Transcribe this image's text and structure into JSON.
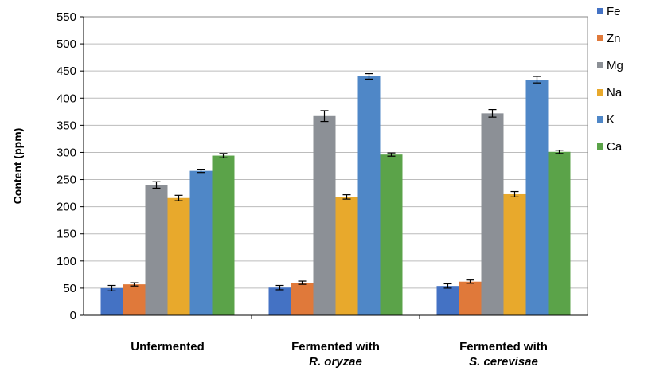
{
  "chart_data": {
    "type": "bar",
    "categories": [
      {
        "line1": "Unfermented",
        "line2": ""
      },
      {
        "line1": "Fermented with",
        "line2": "R. oryzae"
      },
      {
        "line1": "Fermented with",
        "line2": "S. cerevisae"
      }
    ],
    "ylabel": "Content (ppm)",
    "xlabel": "",
    "title": "",
    "ylim": [
      0,
      550
    ],
    "yticks": [
      0,
      50,
      100,
      150,
      200,
      250,
      300,
      350,
      400,
      450,
      500,
      550
    ],
    "grid": true,
    "legend_position": "right",
    "series": [
      {
        "name": "Fe",
        "color": "#4472C4",
        "values": [
          50,
          51,
          54
        ],
        "errors": [
          5,
          4,
          4
        ]
      },
      {
        "name": "Zn",
        "color": "#E0793A",
        "values": [
          57,
          60,
          62
        ],
        "errors": [
          3,
          3,
          3
        ]
      },
      {
        "name": "Mg",
        "color": "#8C9096",
        "values": [
          240,
          367,
          372
        ],
        "errors": [
          6,
          10,
          7
        ]
      },
      {
        "name": "Na",
        "color": "#E8A92C",
        "values": [
          216,
          218,
          223
        ],
        "errors": [
          5,
          4,
          5
        ]
      },
      {
        "name": "K",
        "color": "#4F87C7",
        "values": [
          266,
          440,
          434
        ],
        "errors": [
          3,
          5,
          6
        ]
      },
      {
        "name": "Ca",
        "color": "#5BA349",
        "values": [
          294,
          296,
          301
        ],
        "errors": [
          4,
          3,
          3
        ]
      }
    ]
  }
}
